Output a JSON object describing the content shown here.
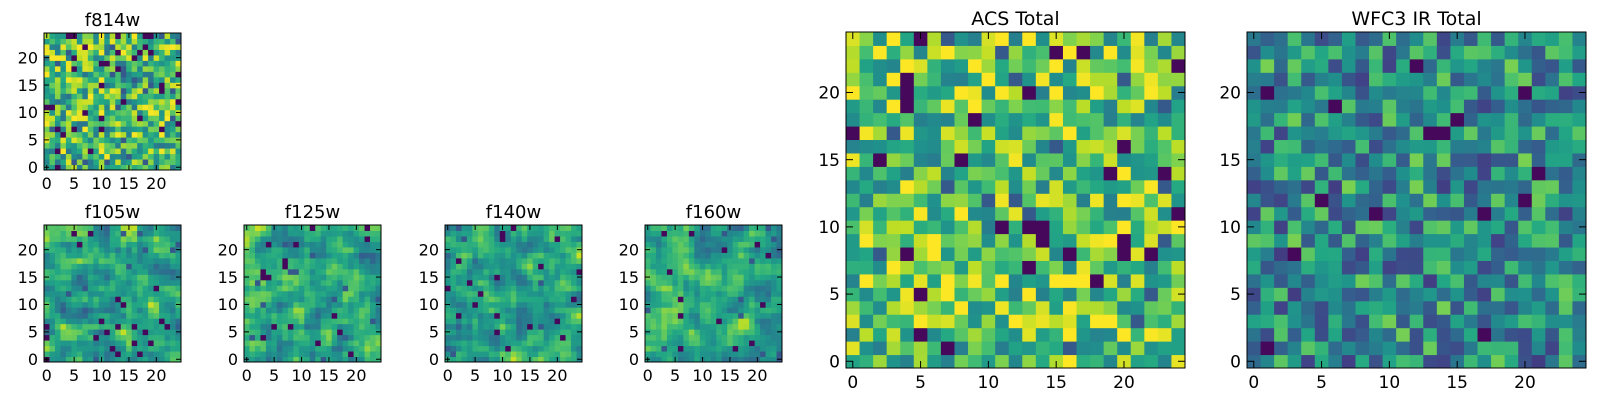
{
  "chart_data": [
    {
      "id": "f814w",
      "type": "heatmap",
      "title": "f814w",
      "grid_size": 25,
      "colormap": "viridis",
      "seed": 11,
      "bias": 0.08,
      "smooth": 0,
      "outlier_rate": 0.06,
      "xticks": [
        "0",
        "5",
        "10",
        "15",
        "20"
      ],
      "yticks": [
        "0",
        "5",
        "10",
        "15",
        "20"
      ],
      "xlim": [
        -0.5,
        24.5
      ],
      "ylim": [
        -0.5,
        24.5
      ]
    },
    {
      "id": "f105w",
      "type": "heatmap",
      "title": "f105w",
      "grid_size": 25,
      "colormap": "viridis",
      "seed": 23,
      "bias": 0.0,
      "smooth": 1,
      "outlier_rate": 0.03,
      "xticks": [
        "0",
        "5",
        "10",
        "15",
        "20"
      ],
      "yticks": [
        "0",
        "5",
        "10",
        "15",
        "20"
      ],
      "xlim": [
        -0.5,
        24.5
      ],
      "ylim": [
        -0.5,
        24.5
      ]
    },
    {
      "id": "f125w",
      "type": "heatmap",
      "title": "f125w",
      "grid_size": 25,
      "colormap": "viridis",
      "seed": 37,
      "bias": 0.0,
      "smooth": 1,
      "outlier_rate": 0.03,
      "xticks": [
        "0",
        "5",
        "10",
        "15",
        "20"
      ],
      "yticks": [
        "0",
        "5",
        "10",
        "15",
        "20"
      ],
      "xlim": [
        -0.5,
        24.5
      ],
      "ylim": [
        -0.5,
        24.5
      ]
    },
    {
      "id": "f140w",
      "type": "heatmap",
      "title": "f140w",
      "grid_size": 25,
      "colormap": "viridis",
      "seed": 41,
      "bias": 0.0,
      "smooth": 1,
      "outlier_rate": 0.03,
      "xticks": [
        "0",
        "5",
        "10",
        "15",
        "20"
      ],
      "yticks": [
        "0",
        "5",
        "10",
        "15",
        "20"
      ],
      "xlim": [
        -0.5,
        24.5
      ],
      "ylim": [
        -0.5,
        24.5
      ]
    },
    {
      "id": "f160w",
      "type": "heatmap",
      "title": "f160w",
      "grid_size": 25,
      "colormap": "viridis",
      "seed": 53,
      "bias": -0.03,
      "smooth": 1,
      "outlier_rate": 0.03,
      "xticks": [
        "0",
        "5",
        "10",
        "15",
        "20"
      ],
      "yticks": [
        "0",
        "5",
        "10",
        "15",
        "20"
      ],
      "xlim": [
        -0.5,
        24.5
      ],
      "ylim": [
        -0.5,
        24.5
      ]
    },
    {
      "id": "acs-total",
      "type": "heatmap",
      "title": "ACS Total",
      "grid_size": 25,
      "colormap": "viridis",
      "seed": 67,
      "bias": 0.12,
      "smooth": 0,
      "outlier_rate": 0.035,
      "xticks": [
        "0",
        "5",
        "10",
        "15",
        "20"
      ],
      "yticks": [
        "0",
        "5",
        "10",
        "15",
        "20"
      ],
      "xlim": [
        -0.5,
        24.5
      ],
      "ylim": [
        -0.5,
        24.5
      ]
    },
    {
      "id": "wfc3-ir-total",
      "type": "heatmap",
      "title": "WFC3 IR Total",
      "grid_size": 25,
      "colormap": "viridis",
      "seed": 79,
      "bias": -0.12,
      "smooth": 0,
      "outlier_rate": 0.035,
      "xticks": [
        "0",
        "5",
        "10",
        "15",
        "20"
      ],
      "yticks": [
        "0",
        "5",
        "10",
        "15",
        "20"
      ],
      "xlim": [
        -0.5,
        24.5
      ],
      "ylim": [
        -0.5,
        24.5
      ]
    }
  ]
}
